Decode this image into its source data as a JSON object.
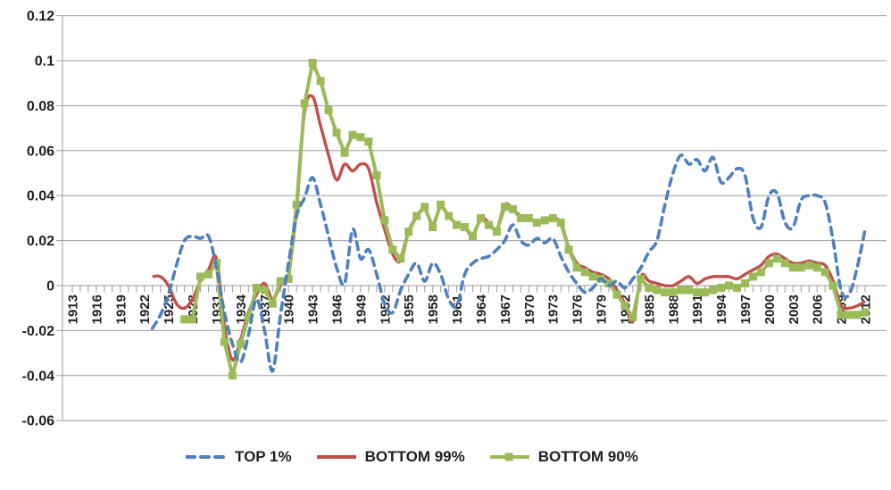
{
  "chart_data": {
    "type": "line",
    "title": "",
    "xlabel": "",
    "ylabel": "",
    "background": "#FFFFFF",
    "grid": "horizontal",
    "grid_color": "#9C9C9C",
    "axis_text_color": "#1F1F1F",
    "ylim": [
      -0.06,
      0.12
    ],
    "y_ticks": [
      "0.12",
      "0.1",
      "0.08",
      "0.06",
      "0.04",
      "0.02",
      "0",
      "-0.02",
      "-0.04",
      "-0.06"
    ],
    "y_tick_values": [
      0.12,
      0.1,
      0.08,
      0.06,
      0.04,
      0.02,
      0,
      -0.02,
      -0.04,
      -0.06
    ],
    "x_start": 1913,
    "x_end": 2012,
    "x_minor_tick_interval": 1,
    "x_tick_labels": [
      "1913",
      "1916",
      "1919",
      "1922",
      "1925",
      "1928",
      "1931",
      "1934",
      "1937",
      "1940",
      "1943",
      "1946",
      "1949",
      "1952",
      "1955",
      "1958",
      "1961",
      "1964",
      "1967",
      "1970",
      "1973",
      "1976",
      "1979",
      "1982",
      "1985",
      "1988",
      "1991",
      "1994",
      "1997",
      "2000",
      "2003",
      "2006",
      "2009",
      "2012"
    ],
    "legend_position": "bottom",
    "series": [
      {
        "name": "TOP 1%",
        "color": "#4F81BD",
        "line_style": "dashed",
        "marker": "none",
        "start_year": 1923,
        "values": [
          -0.019,
          -0.013,
          -0.004,
          0.009,
          0.02,
          0.022,
          0.021,
          0.022,
          0.008,
          -0.012,
          -0.026,
          -0.034,
          -0.022,
          -0.006,
          -0.02,
          -0.038,
          -0.013,
          0.01,
          0.031,
          0.039,
          0.048,
          0.036,
          0.022,
          0.008,
          0.001,
          0.025,
          0.012,
          0.016,
          0.005,
          -0.008,
          -0.012,
          -0.002,
          0.005,
          0.01,
          0.002,
          0.01,
          0.005,
          -0.006,
          -0.009,
          0.005,
          0.01,
          0.012,
          0.013,
          0.016,
          0.02,
          0.027,
          0.02,
          0.018,
          0.021,
          0.019,
          0.021,
          0.013,
          0.006,
          0.001,
          -0.003,
          -0.001,
          0.003,
          0.0,
          0.002,
          -0.001,
          0.003,
          0.008,
          0.015,
          0.02,
          0.036,
          0.05,
          0.058,
          0.054,
          0.056,
          0.051,
          0.057,
          0.046,
          0.048,
          0.052,
          0.049,
          0.03,
          0.026,
          0.04,
          0.041,
          0.028,
          0.026,
          0.038,
          0.04,
          0.04,
          0.037,
          0.02,
          -0.002,
          -0.004,
          0.008,
          0.025
        ]
      },
      {
        "name": "BOTTOM 99%",
        "color": "#C0504D",
        "line_style": "solid",
        "marker": "none",
        "start_year": 1923,
        "values": [
          0.004,
          0.004,
          0.0,
          -0.008,
          -0.01,
          -0.006,
          0.002,
          0.007,
          0.012,
          -0.018,
          -0.033,
          -0.024,
          -0.012,
          -0.004,
          0.001,
          -0.006,
          0.0,
          0.005,
          0.034,
          0.077,
          0.084,
          0.071,
          0.058,
          0.047,
          0.054,
          0.051,
          0.054,
          0.052,
          0.037,
          0.025,
          0.014,
          0.011,
          0.024,
          0.031,
          0.034,
          0.027,
          0.035,
          0.031,
          0.027,
          0.026,
          0.022,
          0.03,
          0.028,
          0.025,
          0.036,
          0.034,
          0.031,
          0.03,
          0.028,
          0.029,
          0.03,
          0.028,
          0.017,
          0.01,
          0.008,
          0.006,
          0.005,
          0.003,
          -0.002,
          -0.008,
          -0.016,
          0.004,
          0.002,
          0.001,
          0.0,
          0.0,
          0.002,
          0.004,
          0.001,
          0.003,
          0.004,
          0.004,
          0.004,
          0.003,
          0.005,
          0.007,
          0.009,
          0.013,
          0.014,
          0.012,
          0.01,
          0.01,
          0.011,
          0.01,
          0.009,
          0.002,
          -0.009,
          -0.01,
          -0.009,
          -0.007
        ]
      },
      {
        "name": "BOTTOM 90%",
        "color": "#9BBB59",
        "line_style": "solid",
        "marker": "square",
        "start_year": 1927,
        "values": [
          -0.015,
          -0.015,
          0.004,
          0.005,
          0.01,
          -0.025,
          -0.04,
          -0.026,
          -0.014,
          -0.001,
          -0.002,
          -0.008,
          0.002,
          0.003,
          0.036,
          0.081,
          0.099,
          0.091,
          0.078,
          0.068,
          0.059,
          0.067,
          0.066,
          0.064,
          0.049,
          0.029,
          0.016,
          0.012,
          0.024,
          0.031,
          0.035,
          0.026,
          0.036,
          0.031,
          0.027,
          0.026,
          0.022,
          0.03,
          0.027,
          0.024,
          0.035,
          0.034,
          0.03,
          0.03,
          0.028,
          0.029,
          0.03,
          0.028,
          0.016,
          0.008,
          0.006,
          0.004,
          0.003,
          0.001,
          -0.004,
          -0.009,
          -0.014,
          0.003,
          -0.001,
          -0.002,
          -0.003,
          -0.003,
          -0.002,
          -0.002,
          -0.003,
          -0.003,
          -0.002,
          -0.001,
          0.0,
          -0.001,
          0.001,
          0.004,
          0.006,
          0.01,
          0.012,
          0.01,
          0.008,
          0.008,
          0.009,
          0.008,
          0.006,
          0.0,
          -0.013,
          -0.013,
          -0.013,
          -0.012
        ]
      }
    ]
  }
}
